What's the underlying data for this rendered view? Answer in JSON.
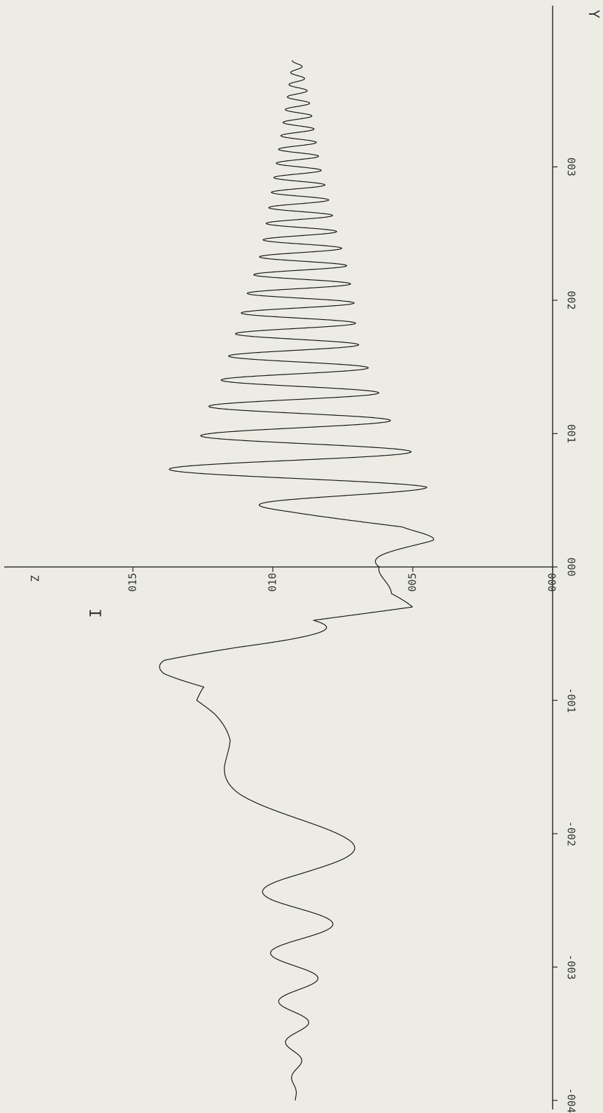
{
  "chart_data": {
    "type": "line",
    "orientation": "rotated-90",
    "x_axis": {
      "label": "Y",
      "ticks": [
        -0.04,
        -0.03,
        -0.02,
        -0.01,
        0.0,
        0.01,
        0.02,
        0.03
      ],
      "tick_labels": [
        "-004",
        "-003",
        "-002",
        "-001",
        "000",
        "001",
        "002",
        "003"
      ],
      "range": [
        -0.04,
        0.038
      ]
    },
    "y_axis": {
      "label": "I",
      "ticks": [
        0.0,
        0.05,
        0.1,
        0.15
      ],
      "tick_labels": [
        "000",
        "005",
        "010",
        "015"
      ],
      "range": [
        0.0,
        0.19
      ]
    },
    "corner_label": "Z",
    "grid": false,
    "series": [
      {
        "x": [
          -0.04,
          -0.035,
          -0.03,
          -0.025,
          -0.023,
          -0.02,
          -0.017,
          -0.015,
          -0.013,
          -0.011,
          -0.01,
          -0.009,
          -0.008,
          -0.007,
          -0.006,
          -0.005,
          -0.004,
          -0.003,
          -0.002,
          0.0,
          0.002,
          0.003,
          0.004,
          0.005,
          0.006,
          0.007,
          0.008,
          0.009,
          0.01,
          0.011,
          0.013,
          0.015,
          0.017,
          0.02,
          0.023,
          0.025,
          0.03,
          0.035,
          0.038
        ],
        "envelope_upper": [
          0.092,
          0.096,
          0.1,
          0.104,
          0.103,
          0.108,
          0.115,
          0.118,
          0.12,
          0.126,
          0.13,
          0.125,
          0.14,
          0.15,
          0.142,
          0.12,
          0.09,
          0.06,
          0.065,
          0.062,
          0.074,
          0.06,
          0.09,
          0.12,
          0.14,
          0.138,
          0.135,
          0.13,
          0.125,
          0.126,
          0.12,
          0.117,
          0.114,
          0.11,
          0.105,
          0.103,
          0.099,
          0.095,
          0.093
        ],
        "envelope_lower": [
          0.092,
          0.088,
          0.083,
          0.076,
          0.072,
          0.07,
          0.066,
          0.06,
          0.058,
          0.052,
          0.05,
          0.045,
          0.04,
          0.038,
          0.043,
          0.062,
          0.085,
          0.05,
          0.055,
          0.046,
          0.04,
          0.052,
          0.085,
          0.06,
          0.044,
          0.046,
          0.048,
          0.052,
          0.055,
          0.058,
          0.062,
          0.066,
          0.07,
          0.071,
          0.074,
          0.077,
          0.083,
          0.087,
          0.09
        ]
      }
    ]
  }
}
